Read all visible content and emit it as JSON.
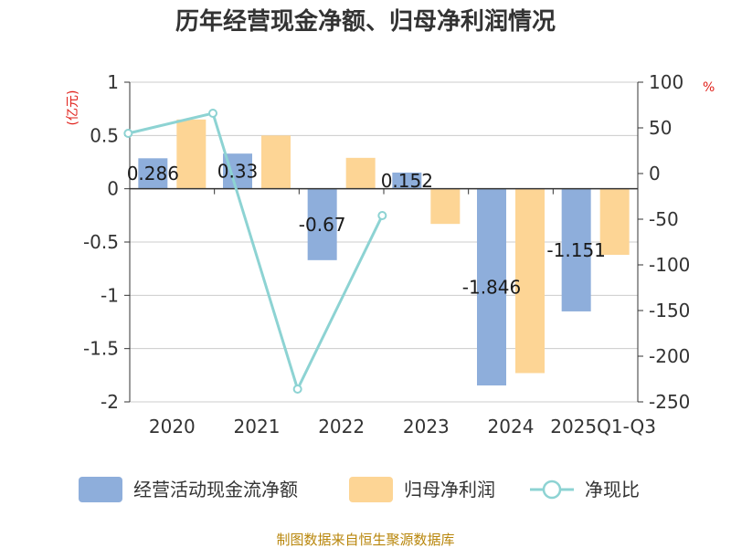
{
  "chart_data": {
    "type": "bar",
    "title": "历年经营现金净额、归母净利润情况",
    "categories": [
      "2020",
      "2021",
      "2022",
      "2023",
      "2024",
      "2025Q1-Q3"
    ],
    "left_axis": {
      "unit": "(亿元)",
      "ylim": [
        -2,
        1
      ],
      "ticks": [
        "1",
        "0.5",
        "0",
        "-0.5",
        "-1",
        "-1.5",
        "-2"
      ]
    },
    "right_axis": {
      "unit": "%",
      "ylim": [
        -250,
        100
      ],
      "ticks": [
        "100",
        "50",
        "0",
        "-50",
        "-100",
        "-150",
        "-200",
        "-250"
      ]
    },
    "series": [
      {
        "name": "经营活动现金流净额",
        "type": "bar",
        "axis": "left",
        "color": "#8eaedb",
        "values": [
          0.286,
          0.33,
          -0.67,
          0.152,
          -1.846,
          -1.151
        ],
        "labels": [
          "0.286",
          "0.33",
          "-0.67",
          "0.152",
          "-1.846",
          "-1.151"
        ]
      },
      {
        "name": "归母净利润",
        "type": "bar",
        "axis": "left",
        "color": "#fdd595",
        "values": [
          0.65,
          0.5,
          0.29,
          -0.33,
          -1.73,
          -0.62
        ]
      },
      {
        "name": "净现比",
        "type": "line",
        "axis": "right",
        "color": "#8dd3d3",
        "values": [
          44,
          66,
          -236,
          -46,
          null,
          null
        ]
      }
    ],
    "source": "制图数据来自恒生聚源数据库"
  }
}
